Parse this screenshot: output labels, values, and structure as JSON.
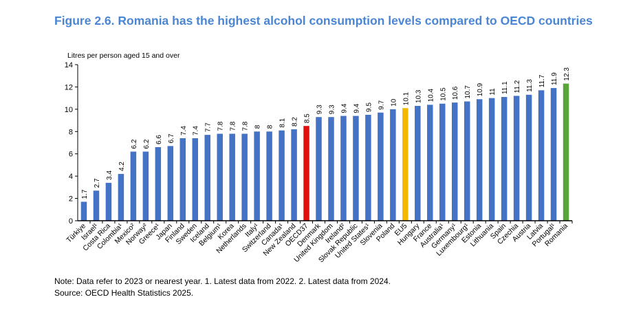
{
  "title": "Figure 2.6. Romania has the highest alcohol consumption levels compared to OECD countries",
  "notes": {
    "note": "Note: Data refer to 2023 or nearest year. 1. Latest data from 2022. 2. Latest data from 2024.",
    "source": "Source: OECD Health Statistics 2025."
  },
  "chart_data": {
    "type": "bar",
    "ylabel": "Litres per person aged 15 and over",
    "ylim": [
      0,
      14
    ],
    "yticks": [
      0,
      2,
      4,
      6,
      8,
      10,
      12,
      14
    ],
    "grid": false,
    "categories": [
      "Türkiye",
      "Israel¹",
      "Costa Rica",
      "Colombia¹",
      "Mexico²",
      "Norway²",
      "Greece¹",
      "Japan",
      "Finland",
      "Sweden",
      "Iceland",
      "Belgium¹",
      "Korea",
      "Netherlands",
      "Italy¹",
      "Switzerland",
      "Canada¹",
      "New Zealand",
      "OECD37",
      "Denmark",
      "United Kingdom",
      "Ireland²",
      "Slovak Republic",
      "United States¹",
      "Slovenia",
      "Poland",
      "EU5",
      "Hungary",
      "France",
      "Australia¹",
      "Germany¹",
      "Luxembourg¹",
      "Estonia",
      "Lithuania",
      "Spain",
      "Czechia",
      "Austria",
      "Latvia",
      "Portugal¹",
      "Romania"
    ],
    "values": [
      1.7,
      2.7,
      3.4,
      4.2,
      6.2,
      6.2,
      6.6,
      6.7,
      7.4,
      7.4,
      7.7,
      7.8,
      7.8,
      7.8,
      8,
      8,
      8.1,
      8.2,
      8.5,
      9.3,
      9.3,
      9.4,
      9.4,
      9.5,
      9.7,
      10,
      10.1,
      10.3,
      10.4,
      10.5,
      10.6,
      10.7,
      10.9,
      11,
      11.1,
      11.2,
      11.3,
      11.7,
      11.9,
      12.3
    ],
    "colors": {
      "default": "#4472c4",
      "OECD37": "#e01010",
      "EU5": "#f5b800",
      "Romania": "#5aa53a"
    }
  }
}
